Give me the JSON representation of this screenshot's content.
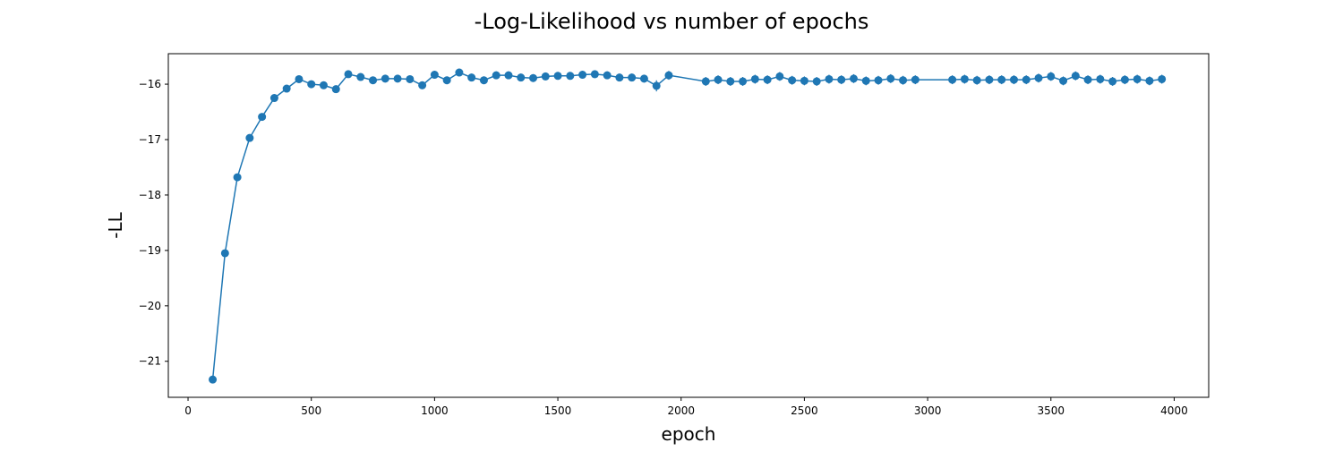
{
  "chart_data": {
    "type": "line",
    "title": "-Log-Likelihood vs number of epochs",
    "xlabel": "epoch",
    "ylabel": "-LL",
    "xlim": [
      -80,
      4140
    ],
    "ylim": [
      -21.65,
      -15.45
    ],
    "xticks": [
      0,
      500,
      1000,
      1500,
      2000,
      2500,
      3000,
      3500,
      4000
    ],
    "xtick_labels": [
      "0",
      "500",
      "1000",
      "1500",
      "2000",
      "2500",
      "3000",
      "3500",
      "4000"
    ],
    "yticks": [
      -21,
      -20,
      -19,
      -18,
      -17,
      -16
    ],
    "ytick_labels": [
      "−21",
      "−20",
      "−19",
      "−18",
      "−17",
      "−16"
    ],
    "grid": false,
    "legend": "none",
    "colors": {
      "series": "#1f77b4",
      "axes": "#000000",
      "background": "#ffffff"
    },
    "series": [
      {
        "marker": "circle",
        "x": [
          100,
          150,
          200,
          250,
          300,
          350,
          400,
          450,
          500,
          550,
          600,
          650,
          700,
          750,
          800,
          850,
          900,
          950,
          1000,
          1050,
          1100,
          1150,
          1200,
          1250,
          1300,
          1350,
          1400,
          1450,
          1500,
          1550,
          1600,
          1650,
          1700,
          1750,
          1800,
          1850,
          1900,
          1950,
          2100,
          2150,
          2200,
          2250,
          2300,
          2350,
          2400,
          2450,
          2500,
          2550,
          2600,
          2650,
          2700,
          2750,
          2800,
          2850,
          2900,
          2950,
          3100,
          3150,
          3200,
          3250,
          3300,
          3350,
          3400,
          3450,
          3500,
          3550,
          3600,
          3650,
          3700,
          3750,
          3800,
          3850,
          3900,
          3950
        ],
        "y": [
          -21.33,
          -19.05,
          -17.68,
          -16.97,
          -16.59,
          -16.25,
          -16.08,
          -15.91,
          -16.0,
          -16.02,
          -16.09,
          -15.82,
          -15.87,
          -15.93,
          -15.9,
          -15.9,
          -15.91,
          -16.02,
          -15.83,
          -15.93,
          -15.79,
          -15.88,
          -15.93,
          -15.84,
          -15.84,
          -15.88,
          -15.89,
          -15.86,
          -15.85,
          -15.85,
          -15.83,
          -15.82,
          -15.84,
          -15.88,
          -15.88,
          -15.9,
          -16.03,
          -15.84,
          -15.95,
          -15.92,
          -15.95,
          -15.95,
          -15.91,
          -15.92,
          -15.86,
          -15.93,
          -15.94,
          -15.95,
          -15.91,
          -15.92,
          -15.9,
          -15.94,
          -15.93,
          -15.9,
          -15.93,
          -15.92,
          -15.92,
          -15.91,
          -15.93,
          -15.92,
          -15.92,
          -15.92,
          -15.92,
          -15.89,
          -15.86,
          -15.94,
          -15.85,
          -15.92,
          -15.91,
          -15.95,
          -15.92,
          -15.91,
          -15.94,
          -15.91
        ],
        "error": [
          0.03,
          0.03,
          0.03,
          0.04,
          0.05,
          0.05,
          0.05,
          0.05,
          0.05,
          0.06,
          0.07,
          0.06,
          0.06,
          0.06,
          0.06,
          0.06,
          0.06,
          0.07,
          0.07,
          0.07,
          0.07,
          0.07,
          0.07,
          0.07,
          0.07,
          0.07,
          0.07,
          0.07,
          0.07,
          0.07,
          0.07,
          0.07,
          0.07,
          0.07,
          0.07,
          0.07,
          0.1,
          0.08,
          0.08,
          0.08,
          0.08,
          0.08,
          0.08,
          0.08,
          0.08,
          0.08,
          0.08,
          0.08,
          0.08,
          0.08,
          0.08,
          0.08,
          0.08,
          0.08,
          0.08,
          0.08,
          0.08,
          0.08,
          0.08,
          0.08,
          0.08,
          0.08,
          0.08,
          0.08,
          0.08,
          0.08,
          0.08,
          0.08,
          0.08,
          0.08,
          0.08,
          0.08,
          0.08,
          0.08
        ]
      }
    ]
  }
}
